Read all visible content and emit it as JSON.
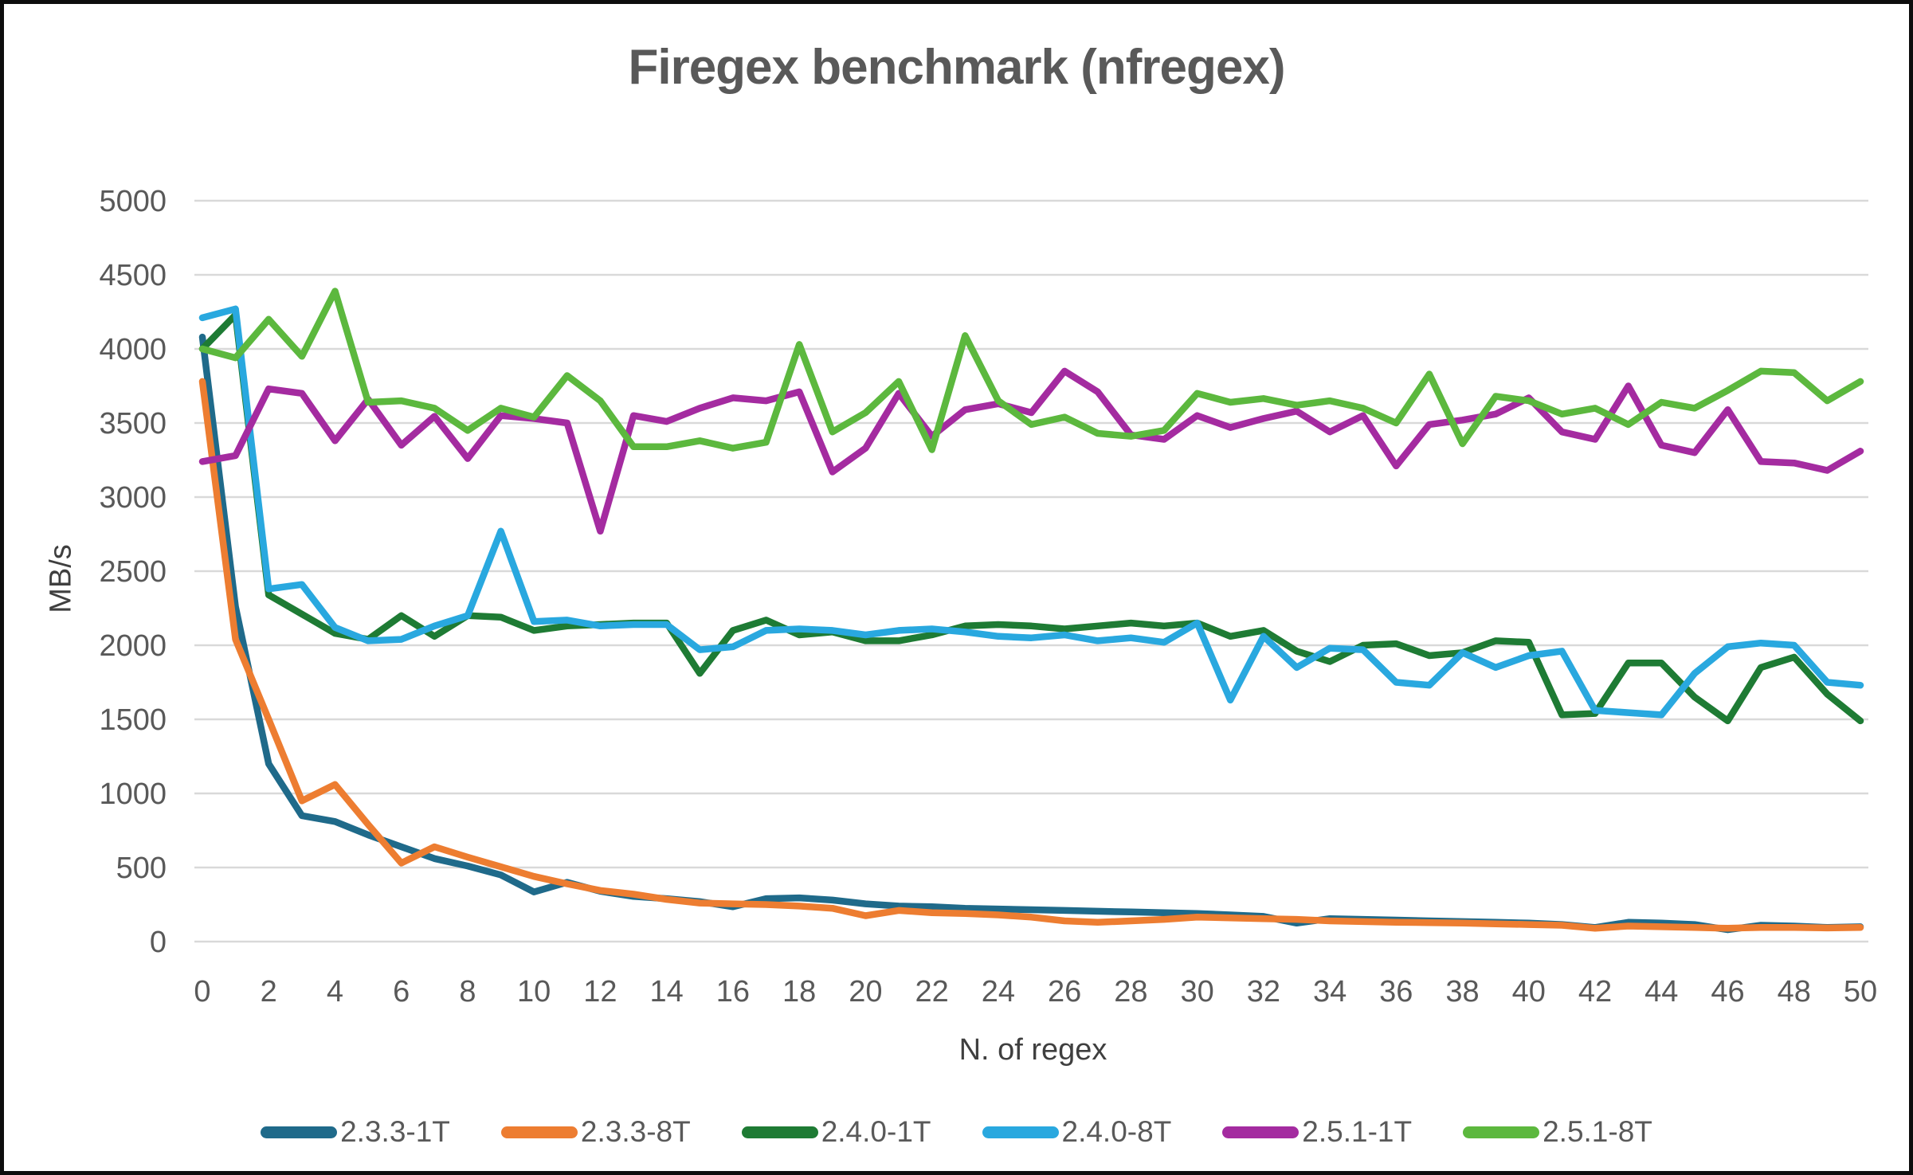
{
  "page": {
    "background": "#ffffff",
    "frame_border_color": "#0d0d0d"
  },
  "chart_data": {
    "type": "line",
    "title": "Firegex benchmark (nfregex)",
    "xlabel": "N. of regex",
    "ylabel": "MB/s",
    "grid": "horizontal-only",
    "legend_position": "bottom",
    "title_color": "#595959",
    "axis_tick_color": "#595959",
    "axis_title_color": "#3f3f3f",
    "gridline_color": "#d9d9d9",
    "xlim": [
      0,
      50
    ],
    "ylim": [
      0,
      5000
    ],
    "x_ticks": [
      0,
      2,
      4,
      6,
      8,
      10,
      12,
      14,
      16,
      18,
      20,
      22,
      24,
      26,
      28,
      30,
      32,
      34,
      36,
      38,
      40,
      42,
      44,
      46,
      48,
      50
    ],
    "y_ticks": [
      0,
      500,
      1000,
      1500,
      2000,
      2500,
      3000,
      3500,
      4000,
      4500,
      5000
    ],
    "x": [
      0,
      1,
      2,
      3,
      4,
      5,
      6,
      7,
      8,
      9,
      10,
      11,
      12,
      13,
      14,
      15,
      16,
      17,
      18,
      19,
      20,
      21,
      22,
      23,
      24,
      25,
      26,
      27,
      28,
      29,
      30,
      31,
      32,
      33,
      34,
      35,
      36,
      37,
      38,
      39,
      40,
      41,
      42,
      43,
      44,
      45,
      46,
      47,
      48,
      49,
      50
    ],
    "series": [
      {
        "name": "2.3.3-1T",
        "color": "#1f6a8a",
        "values": [
          4080,
          2260,
          1200,
          850,
          810,
          720,
          640,
          560,
          510,
          450,
          335,
          400,
          340,
          305,
          290,
          270,
          235,
          290,
          295,
          280,
          255,
          240,
          235,
          225,
          220,
          215,
          210,
          205,
          200,
          195,
          190,
          180,
          170,
          125,
          155,
          150,
          145,
          140,
          135,
          130,
          125,
          115,
          95,
          130,
          125,
          115,
          80,
          110,
          105,
          95,
          100
        ]
      },
      {
        "name": "2.3.3-8T",
        "color": "#ed7d31",
        "values": [
          3780,
          2040,
          1500,
          950,
          1060,
          790,
          530,
          640,
          570,
          505,
          440,
          390,
          345,
          320,
          285,
          260,
          255,
          250,
          240,
          225,
          175,
          210,
          195,
          190,
          180,
          165,
          140,
          130,
          140,
          150,
          165,
          160,
          155,
          150,
          140,
          135,
          130,
          128,
          125,
          120,
          115,
          110,
          90,
          105,
          100,
          95,
          90,
          95,
          95,
          92,
          95
        ]
      },
      {
        "name": "2.4.0-1T",
        "color": "#1e7b34",
        "values": [
          4000,
          4230,
          2340,
          2210,
          2080,
          2040,
          2200,
          2060,
          2200,
          2190,
          2100,
          2130,
          2140,
          2150,
          2150,
          1810,
          2100,
          2170,
          2070,
          2090,
          2030,
          2030,
          2070,
          2130,
          2140,
          2130,
          2110,
          2130,
          2150,
          2130,
          2150,
          2060,
          2100,
          1960,
          1890,
          2000,
          2010,
          1930,
          1950,
          2030,
          2020,
          1530,
          1540,
          1880,
          1880,
          1650,
          1490,
          1850,
          1920,
          1670,
          1490
        ]
      },
      {
        "name": "2.4.0-8T",
        "color": "#29a8df",
        "values": [
          4210,
          4270,
          2380,
          2410,
          2120,
          2030,
          2040,
          2130,
          2200,
          2770,
          2160,
          2170,
          2130,
          2140,
          2140,
          1970,
          1990,
          2100,
          2110,
          2100,
          2070,
          2100,
          2110,
          2090,
          2060,
          2050,
          2070,
          2030,
          2050,
          2020,
          2150,
          1630,
          2060,
          1850,
          1980,
          1970,
          1750,
          1730,
          1950,
          1850,
          1930,
          1960,
          1560,
          1545,
          1530,
          1810,
          1990,
          2015,
          2000,
          1750,
          1730
        ]
      },
      {
        "name": "2.5.1-1T",
        "color": "#a42ba0",
        "values": [
          3240,
          3280,
          3730,
          3700,
          3380,
          3660,
          3350,
          3545,
          3260,
          3550,
          3530,
          3500,
          2770,
          3550,
          3510,
          3600,
          3670,
          3650,
          3710,
          3170,
          3330,
          3700,
          3410,
          3590,
          3630,
          3570,
          3850,
          3710,
          3420,
          3390,
          3550,
          3470,
          3530,
          3580,
          3440,
          3550,
          3210,
          3490,
          3520,
          3560,
          3670,
          3440,
          3390,
          3750,
          3350,
          3300,
          3590,
          3240,
          3230,
          3180,
          3310
        ]
      },
      {
        "name": "2.5.1-8T",
        "color": "#5cb83e",
        "values": [
          4000,
          3940,
          4200,
          3950,
          4390,
          3640,
          3650,
          3600,
          3450,
          3600,
          3540,
          3820,
          3650,
          3340,
          3340,
          3380,
          3330,
          3370,
          4030,
          3440,
          3570,
          3780,
          3320,
          4090,
          3650,
          3490,
          3540,
          3430,
          3410,
          3450,
          3700,
          3640,
          3665,
          3620,
          3650,
          3600,
          3500,
          3830,
          3360,
          3680,
          3650,
          3560,
          3600,
          3490,
          3640,
          3600,
          3720,
          3850,
          3840,
          3650,
          3780
        ]
      }
    ]
  }
}
